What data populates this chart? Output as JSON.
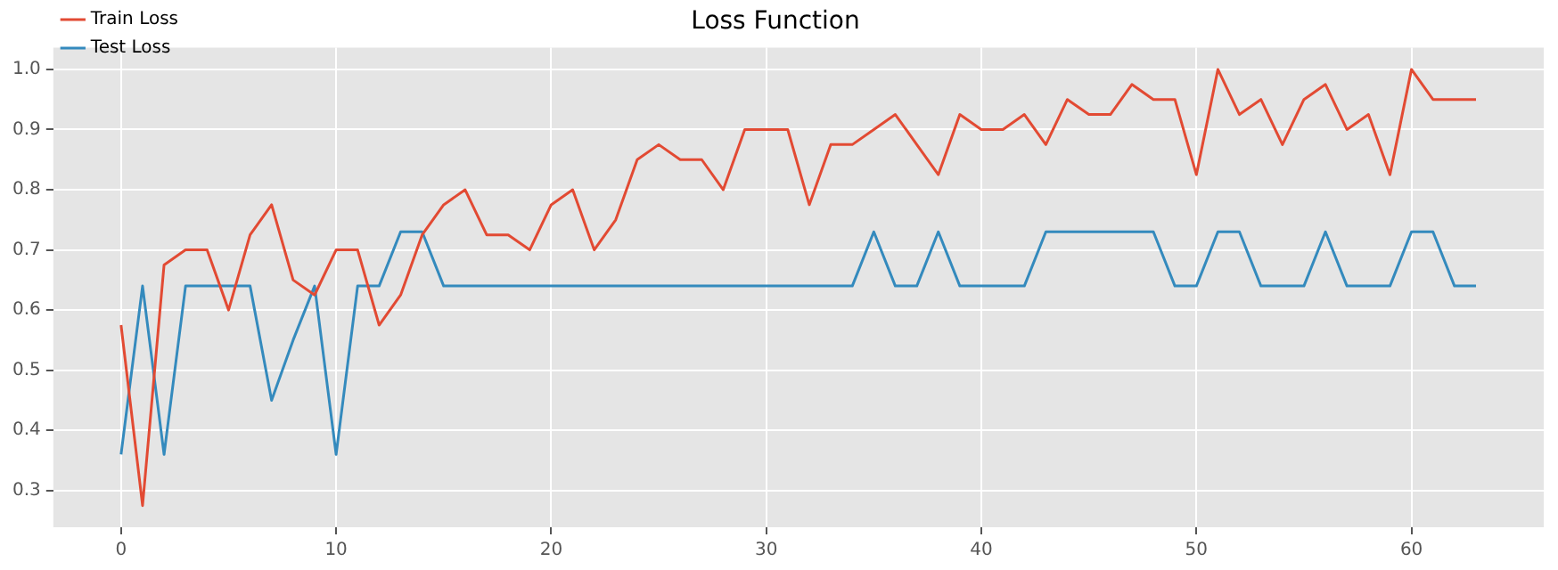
{
  "chart_data": {
    "type": "line",
    "title": "Loss Function",
    "x": [
      0,
      1,
      2,
      3,
      4,
      5,
      6,
      7,
      8,
      9,
      10,
      11,
      12,
      13,
      14,
      15,
      16,
      17,
      18,
      19,
      20,
      21,
      22,
      23,
      24,
      25,
      26,
      27,
      28,
      29,
      30,
      31,
      32,
      33,
      34,
      35,
      36,
      37,
      38,
      39,
      40,
      41,
      42,
      43,
      44,
      45,
      46,
      47,
      48,
      49,
      50,
      51,
      52,
      53,
      54,
      55,
      56,
      57,
      58,
      59,
      60,
      61,
      62,
      63
    ],
    "series": [
      {
        "name": "Train Loss",
        "color": "#e24a33",
        "values": [
          0.575,
          0.275,
          0.675,
          0.7,
          0.7,
          0.6,
          0.725,
          0.775,
          0.65,
          0.625,
          0.7,
          0.7,
          0.575,
          0.625,
          0.725,
          0.775,
          0.8,
          0.725,
          0.725,
          0.7,
          0.775,
          0.8,
          0.7,
          0.75,
          0.85,
          0.875,
          0.85,
          0.85,
          0.8,
          0.9,
          0.9,
          0.9,
          0.775,
          0.875,
          0.875,
          0.9,
          0.925,
          0.875,
          0.825,
          0.925,
          0.9,
          0.9,
          0.925,
          0.875,
          0.95,
          0.925,
          0.925,
          0.975,
          0.95,
          0.95,
          0.825,
          1.0,
          0.925,
          0.95,
          0.875,
          0.95,
          0.975,
          0.9,
          0.925,
          0.825,
          1.0,
          0.95,
          0.95,
          0.95
        ]
      },
      {
        "name": "Test Loss",
        "color": "#348abd",
        "values": [
          0.36,
          0.64,
          0.36,
          0.64,
          0.64,
          0.64,
          0.64,
          0.45,
          0.55,
          0.64,
          0.36,
          0.64,
          0.64,
          0.73,
          0.73,
          0.64,
          0.64,
          0.64,
          0.64,
          0.64,
          0.64,
          0.64,
          0.64,
          0.64,
          0.64,
          0.64,
          0.64,
          0.64,
          0.64,
          0.64,
          0.64,
          0.64,
          0.64,
          0.64,
          0.64,
          0.73,
          0.64,
          0.64,
          0.73,
          0.64,
          0.64,
          0.64,
          0.64,
          0.73,
          0.73,
          0.73,
          0.73,
          0.73,
          0.73,
          0.64,
          0.64,
          0.73,
          0.73,
          0.64,
          0.64,
          0.64,
          0.73,
          0.64,
          0.64,
          0.64,
          0.73,
          0.73,
          0.64,
          0.64
        ]
      }
    ],
    "xlim": [
      -3.15,
      66.15
    ],
    "xticks": [
      0,
      10,
      20,
      30,
      40,
      50,
      60
    ],
    "ylim": [
      0.239,
      1.036
    ],
    "yticks": [
      0.3,
      0.4,
      0.5,
      0.6,
      0.7,
      0.8,
      0.9,
      {
        "value": 1.0,
        "label": "1.0"
      }
    ],
    "grid": true,
    "legend": "top left"
  }
}
